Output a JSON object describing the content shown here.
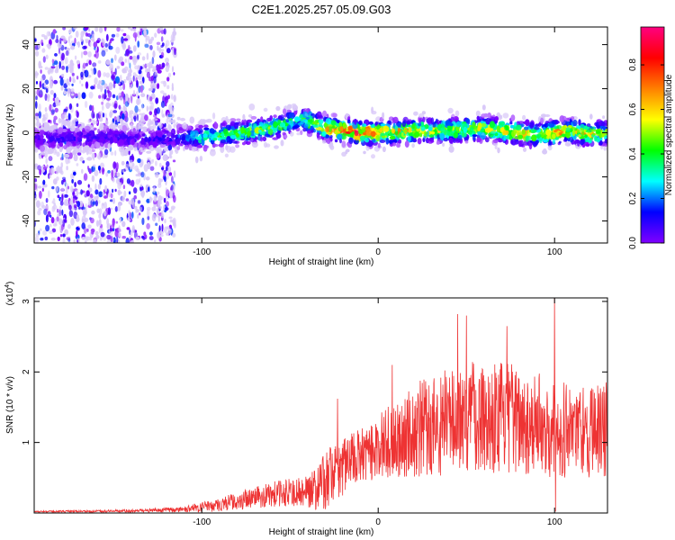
{
  "chart_data": [
    {
      "type": "heatmap",
      "title": "C2E1.2025.257.05.09.G03",
      "xlabel": "Height of straight line (km)",
      "ylabel": "Frequency (Hz)",
      "xlim": [
        -195,
        130
      ],
      "ylim": [
        -50,
        48
      ],
      "xticks": [
        -100,
        0,
        100
      ],
      "yticks": [
        -40,
        -20,
        0,
        20,
        40
      ],
      "colorbar": {
        "label": "Normalized spectral amplitude",
        "range": [
          0,
          0.97
        ],
        "ticks": [
          0.0,
          0.2,
          0.4,
          0.6,
          0.8
        ],
        "colormap": [
          "#ffffff",
          "#8000ff",
          "#0000ff",
          "#00ffff",
          "#00ff00",
          "#ffff00",
          "#ff8000",
          "#ff0000",
          "#ff0080"
        ]
      },
      "noise_region": {
        "x": [
          -195,
          -115
        ],
        "frequency": [
          -50,
          48
        ]
      },
      "ridge": {
        "x": [
          -195,
          -160,
          -130,
          -115,
          -100,
          -80,
          -60,
          -45,
          -38,
          -30,
          -20,
          -10,
          0,
          20,
          40,
          60,
          80,
          90,
          100,
          110,
          120,
          130
        ],
        "frequency": [
          -3,
          -2,
          -3,
          -2,
          -2,
          0,
          2,
          6,
          5,
          2,
          1,
          0,
          0,
          1,
          1,
          2,
          0,
          -1,
          0,
          1,
          -1,
          0
        ],
        "peak_amplitude": [
          0.2,
          0.2,
          0.2,
          0.25,
          0.45,
          0.55,
          0.55,
          0.45,
          0.6,
          0.7,
          0.85,
          0.9,
          0.75,
          0.7,
          0.6,
          0.65,
          0.75,
          0.6,
          0.8,
          0.65,
          0.7,
          0.6
        ]
      },
      "grid": false,
      "legend": "none"
    },
    {
      "type": "line",
      "xlabel": "Height of straight line (km)",
      "ylabel": "SNR (10 * v/v)",
      "yscale_label": "(x10",
      "yscale_exponent": "4",
      "yscale_suffix": ")",
      "xlim": [
        -195,
        130
      ],
      "ylim": [
        0,
        3.05
      ],
      "xticks": [
        -100,
        0,
        100
      ],
      "yticks": [
        1,
        2,
        3
      ],
      "series": [
        {
          "color": "#ee3333",
          "envelope": {
            "x": [
              -195,
              -140,
              -110,
              -90,
              -70,
              -55,
              -45,
              -36,
              -30,
              -22,
              -15,
              -5,
              0,
              10,
              25,
              40,
              55,
              70,
              85,
              100,
              110,
              120,
              130
            ],
            "mean": [
              0.02,
              0.03,
              0.05,
              0.12,
              0.22,
              0.28,
              0.3,
              0.35,
              0.45,
              0.65,
              0.75,
              0.85,
              0.95,
              1.05,
              1.2,
              1.3,
              1.4,
              1.35,
              1.3,
              1.2,
              1.2,
              1.15,
              1.2
            ],
            "spread": [
              0.01,
              0.02,
              0.04,
              0.1,
              0.15,
              0.2,
              0.2,
              0.3,
              0.4,
              0.45,
              0.4,
              0.4,
              0.45,
              0.55,
              0.7,
              0.8,
              0.8,
              0.8,
              0.75,
              0.7,
              0.7,
              0.65,
              0.7
            ]
          },
          "spikes": [
            {
              "x": -23,
              "y": 1.62
            },
            {
              "x": 8,
              "y": 2.1
            },
            {
              "x": 45,
              "y": 2.82
            },
            {
              "x": 50,
              "y": 2.8
            },
            {
              "x": 73,
              "y": 2.65
            },
            {
              "x": 100,
              "y": 3.05
            },
            {
              "x": 100.5,
              "y": 0.02
            }
          ]
        }
      ],
      "grid": false,
      "legend": "none"
    }
  ]
}
